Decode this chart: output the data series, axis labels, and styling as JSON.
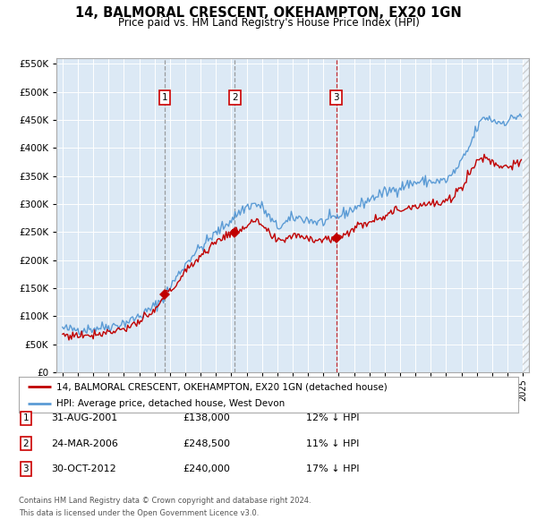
{
  "title": "14, BALMORAL CRESCENT, OKEHAMPTON, EX20 1GN",
  "subtitle": "Price paid vs. HM Land Registry's House Price Index (HPI)",
  "legend_line1": "14, BALMORAL CRESCENT, OKEHAMPTON, EX20 1GN (detached house)",
  "legend_line2": "HPI: Average price, detached house, West Devon",
  "footnote1": "Contains HM Land Registry data © Crown copyright and database right 2024.",
  "footnote2": "This data is licensed under the Open Government Licence v3.0.",
  "purchases": [
    {
      "num": 1,
      "date": "31-AUG-2001",
      "date_val": 2001.664,
      "price": 138000,
      "hpi_pct": "12% ↓ HPI",
      "vline_style": "gray"
    },
    {
      "num": 2,
      "date": "24-MAR-2006",
      "date_val": 2006.228,
      "price": 248500,
      "hpi_pct": "11% ↓ HPI",
      "vline_style": "gray"
    },
    {
      "num": 3,
      "date": "30-OCT-2012",
      "date_val": 2012.831,
      "price": 240000,
      "hpi_pct": "17% ↓ HPI",
      "vline_style": "red"
    }
  ],
  "hpi_color": "#5b9bd5",
  "price_color": "#c00000",
  "bg_color": "#dce9f5",
  "grid_color": "#ffffff",
  "ylim": [
    0,
    560000
  ],
  "xlim_start": 1994.6,
  "xlim_end": 2025.4,
  "hpi_anchors": [
    [
      1995.0,
      78000
    ],
    [
      1995.5,
      76000
    ],
    [
      1996.0,
      77000
    ],
    [
      1996.5,
      76500
    ],
    [
      1997.0,
      78000
    ],
    [
      1997.5,
      80000
    ],
    [
      1998.0,
      82000
    ],
    [
      1998.5,
      84000
    ],
    [
      1999.0,
      88000
    ],
    [
      1999.5,
      93000
    ],
    [
      2000.0,
      100000
    ],
    [
      2000.5,
      108000
    ],
    [
      2001.0,
      118000
    ],
    [
      2001.5,
      130000
    ],
    [
      2002.0,
      152000
    ],
    [
      2002.5,
      172000
    ],
    [
      2003.0,
      192000
    ],
    [
      2003.5,
      210000
    ],
    [
      2004.0,
      222000
    ],
    [
      2004.5,
      235000
    ],
    [
      2005.0,
      248000
    ],
    [
      2005.5,
      260000
    ],
    [
      2006.0,
      272000
    ],
    [
      2006.5,
      285000
    ],
    [
      2007.0,
      295000
    ],
    [
      2007.5,
      300000
    ],
    [
      2008.0,
      295000
    ],
    [
      2008.5,
      275000
    ],
    [
      2009.0,
      258000
    ],
    [
      2009.5,
      265000
    ],
    [
      2010.0,
      275000
    ],
    [
      2010.5,
      275000
    ],
    [
      2011.0,
      272000
    ],
    [
      2011.5,
      268000
    ],
    [
      2012.0,
      268000
    ],
    [
      2012.5,
      272000
    ],
    [
      2013.0,
      278000
    ],
    [
      2013.5,
      285000
    ],
    [
      2014.0,
      292000
    ],
    [
      2014.5,
      300000
    ],
    [
      2015.0,
      308000
    ],
    [
      2015.5,
      315000
    ],
    [
      2016.0,
      320000
    ],
    [
      2016.5,
      325000
    ],
    [
      2017.0,
      330000
    ],
    [
      2017.5,
      335000
    ],
    [
      2018.0,
      338000
    ],
    [
      2018.5,
      340000
    ],
    [
      2019.0,
      340000
    ],
    [
      2019.5,
      340000
    ],
    [
      2020.0,
      342000
    ],
    [
      2020.5,
      355000
    ],
    [
      2021.0,
      375000
    ],
    [
      2021.5,
      400000
    ],
    [
      2022.0,
      435000
    ],
    [
      2022.5,
      455000
    ],
    [
      2023.0,
      450000
    ],
    [
      2023.5,
      445000
    ],
    [
      2024.0,
      448000
    ],
    [
      2024.5,
      455000
    ],
    [
      2024.9,
      460000
    ]
  ],
  "price_anchors": [
    [
      1995.0,
      67000
    ],
    [
      1995.5,
      65000
    ],
    [
      1996.0,
      66000
    ],
    [
      1996.5,
      66500
    ],
    [
      1997.0,
      68000
    ],
    [
      1997.5,
      70000
    ],
    [
      1998.0,
      72000
    ],
    [
      1998.5,
      75000
    ],
    [
      1999.0,
      78000
    ],
    [
      1999.5,
      83000
    ],
    [
      2000.0,
      90000
    ],
    [
      2000.5,
      98000
    ],
    [
      2001.0,
      108000
    ],
    [
      2001.664,
      138000
    ],
    [
      2002.0,
      145000
    ],
    [
      2002.5,
      160000
    ],
    [
      2003.0,
      178000
    ],
    [
      2003.5,
      195000
    ],
    [
      2004.0,
      208000
    ],
    [
      2004.5,
      220000
    ],
    [
      2005.0,
      232000
    ],
    [
      2005.5,
      242000
    ],
    [
      2006.0,
      250000
    ],
    [
      2006.228,
      248500
    ],
    [
      2006.5,
      255000
    ],
    [
      2007.0,
      262000
    ],
    [
      2007.5,
      268000
    ],
    [
      2008.0,
      262000
    ],
    [
      2008.5,
      245000
    ],
    [
      2009.0,
      232000
    ],
    [
      2009.5,
      238000
    ],
    [
      2010.0,
      245000
    ],
    [
      2010.5,
      244000
    ],
    [
      2011.0,
      240000
    ],
    [
      2011.5,
      237000
    ],
    [
      2012.0,
      236000
    ],
    [
      2012.5,
      238000
    ],
    [
      2012.831,
      240000
    ],
    [
      2013.0,
      242000
    ],
    [
      2013.5,
      248000
    ],
    [
      2014.0,
      256000
    ],
    [
      2014.5,
      263000
    ],
    [
      2015.0,
      270000
    ],
    [
      2015.5,
      275000
    ],
    [
      2016.0,
      280000
    ],
    [
      2016.5,
      285000
    ],
    [
      2017.0,
      290000
    ],
    [
      2017.5,
      294000
    ],
    [
      2018.0,
      297000
    ],
    [
      2018.5,
      300000
    ],
    [
      2019.0,
      300000
    ],
    [
      2019.5,
      300000
    ],
    [
      2020.0,
      302000
    ],
    [
      2020.5,
      315000
    ],
    [
      2021.0,
      330000
    ],
    [
      2021.5,
      355000
    ],
    [
      2022.0,
      375000
    ],
    [
      2022.5,
      385000
    ],
    [
      2023.0,
      375000
    ],
    [
      2023.5,
      368000
    ],
    [
      2024.0,
      368000
    ],
    [
      2024.5,
      370000
    ],
    [
      2024.9,
      372000
    ]
  ]
}
